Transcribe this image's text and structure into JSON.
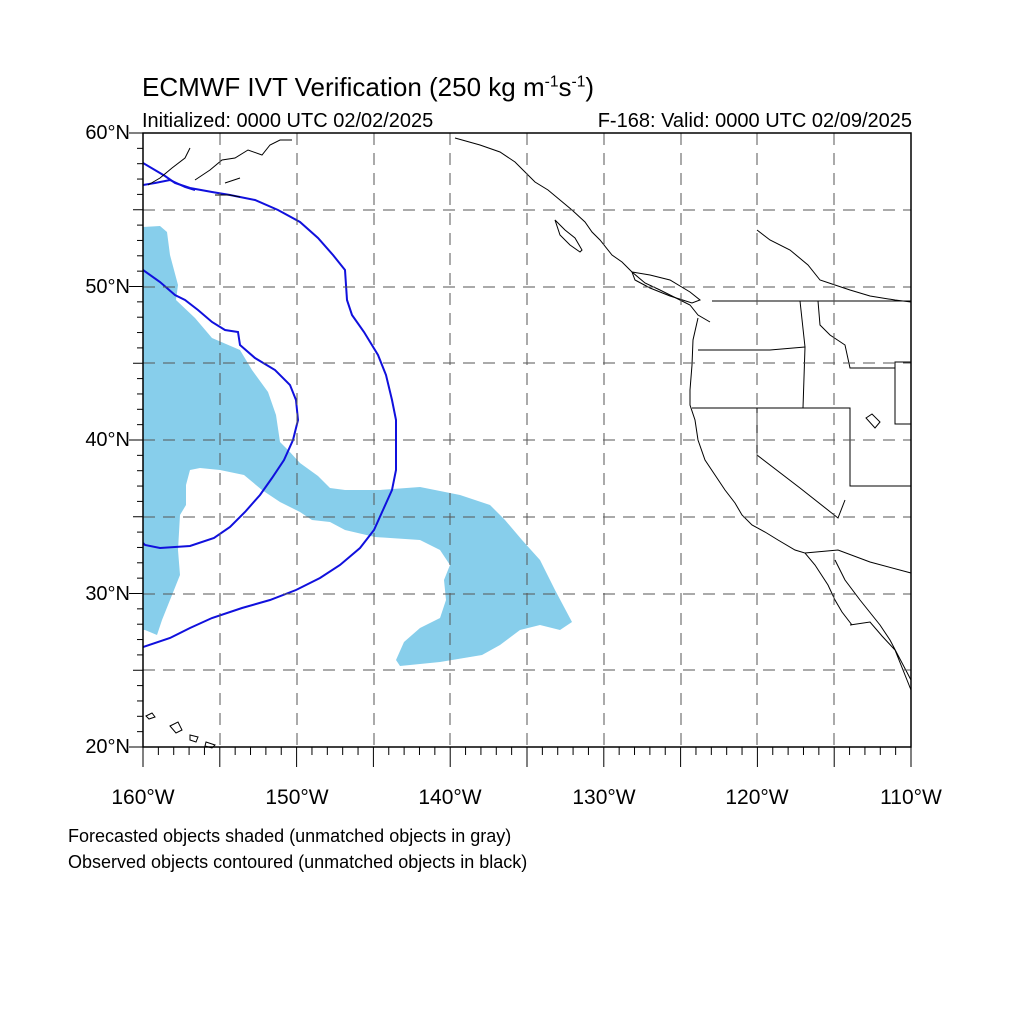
{
  "title": {
    "main": "ECMWF IVT Verification (250 kg m",
    "sup1": "-1",
    "mid": "s",
    "sup2": "-1",
    "end": ")"
  },
  "initialized": "Initialized: 0000 UTC 02/02/2025",
  "valid": "F-168: Valid: 0000 UTC 02/09/2025",
  "axes": {
    "lat_labels": [
      "60°N",
      "50°N",
      "40°N",
      "30°N",
      "20°N"
    ],
    "lon_labels": [
      "160°W",
      "150°W",
      "140°W",
      "130°W",
      "120°W",
      "110°W"
    ],
    "lat_range": [
      20,
      60
    ],
    "lon_range": [
      -160,
      -110
    ],
    "grid": "dashed every 5 degrees"
  },
  "footer": {
    "line1": "Forecasted objects shaded (unmatched objects in gray)",
    "line2": "Observed objects contoured (unmatched objects in black)"
  },
  "colors": {
    "forecast_fill": "#87CEEB",
    "observed_contour": "#1010DD",
    "coastline": "#000000",
    "grid": "#555555"
  }
}
